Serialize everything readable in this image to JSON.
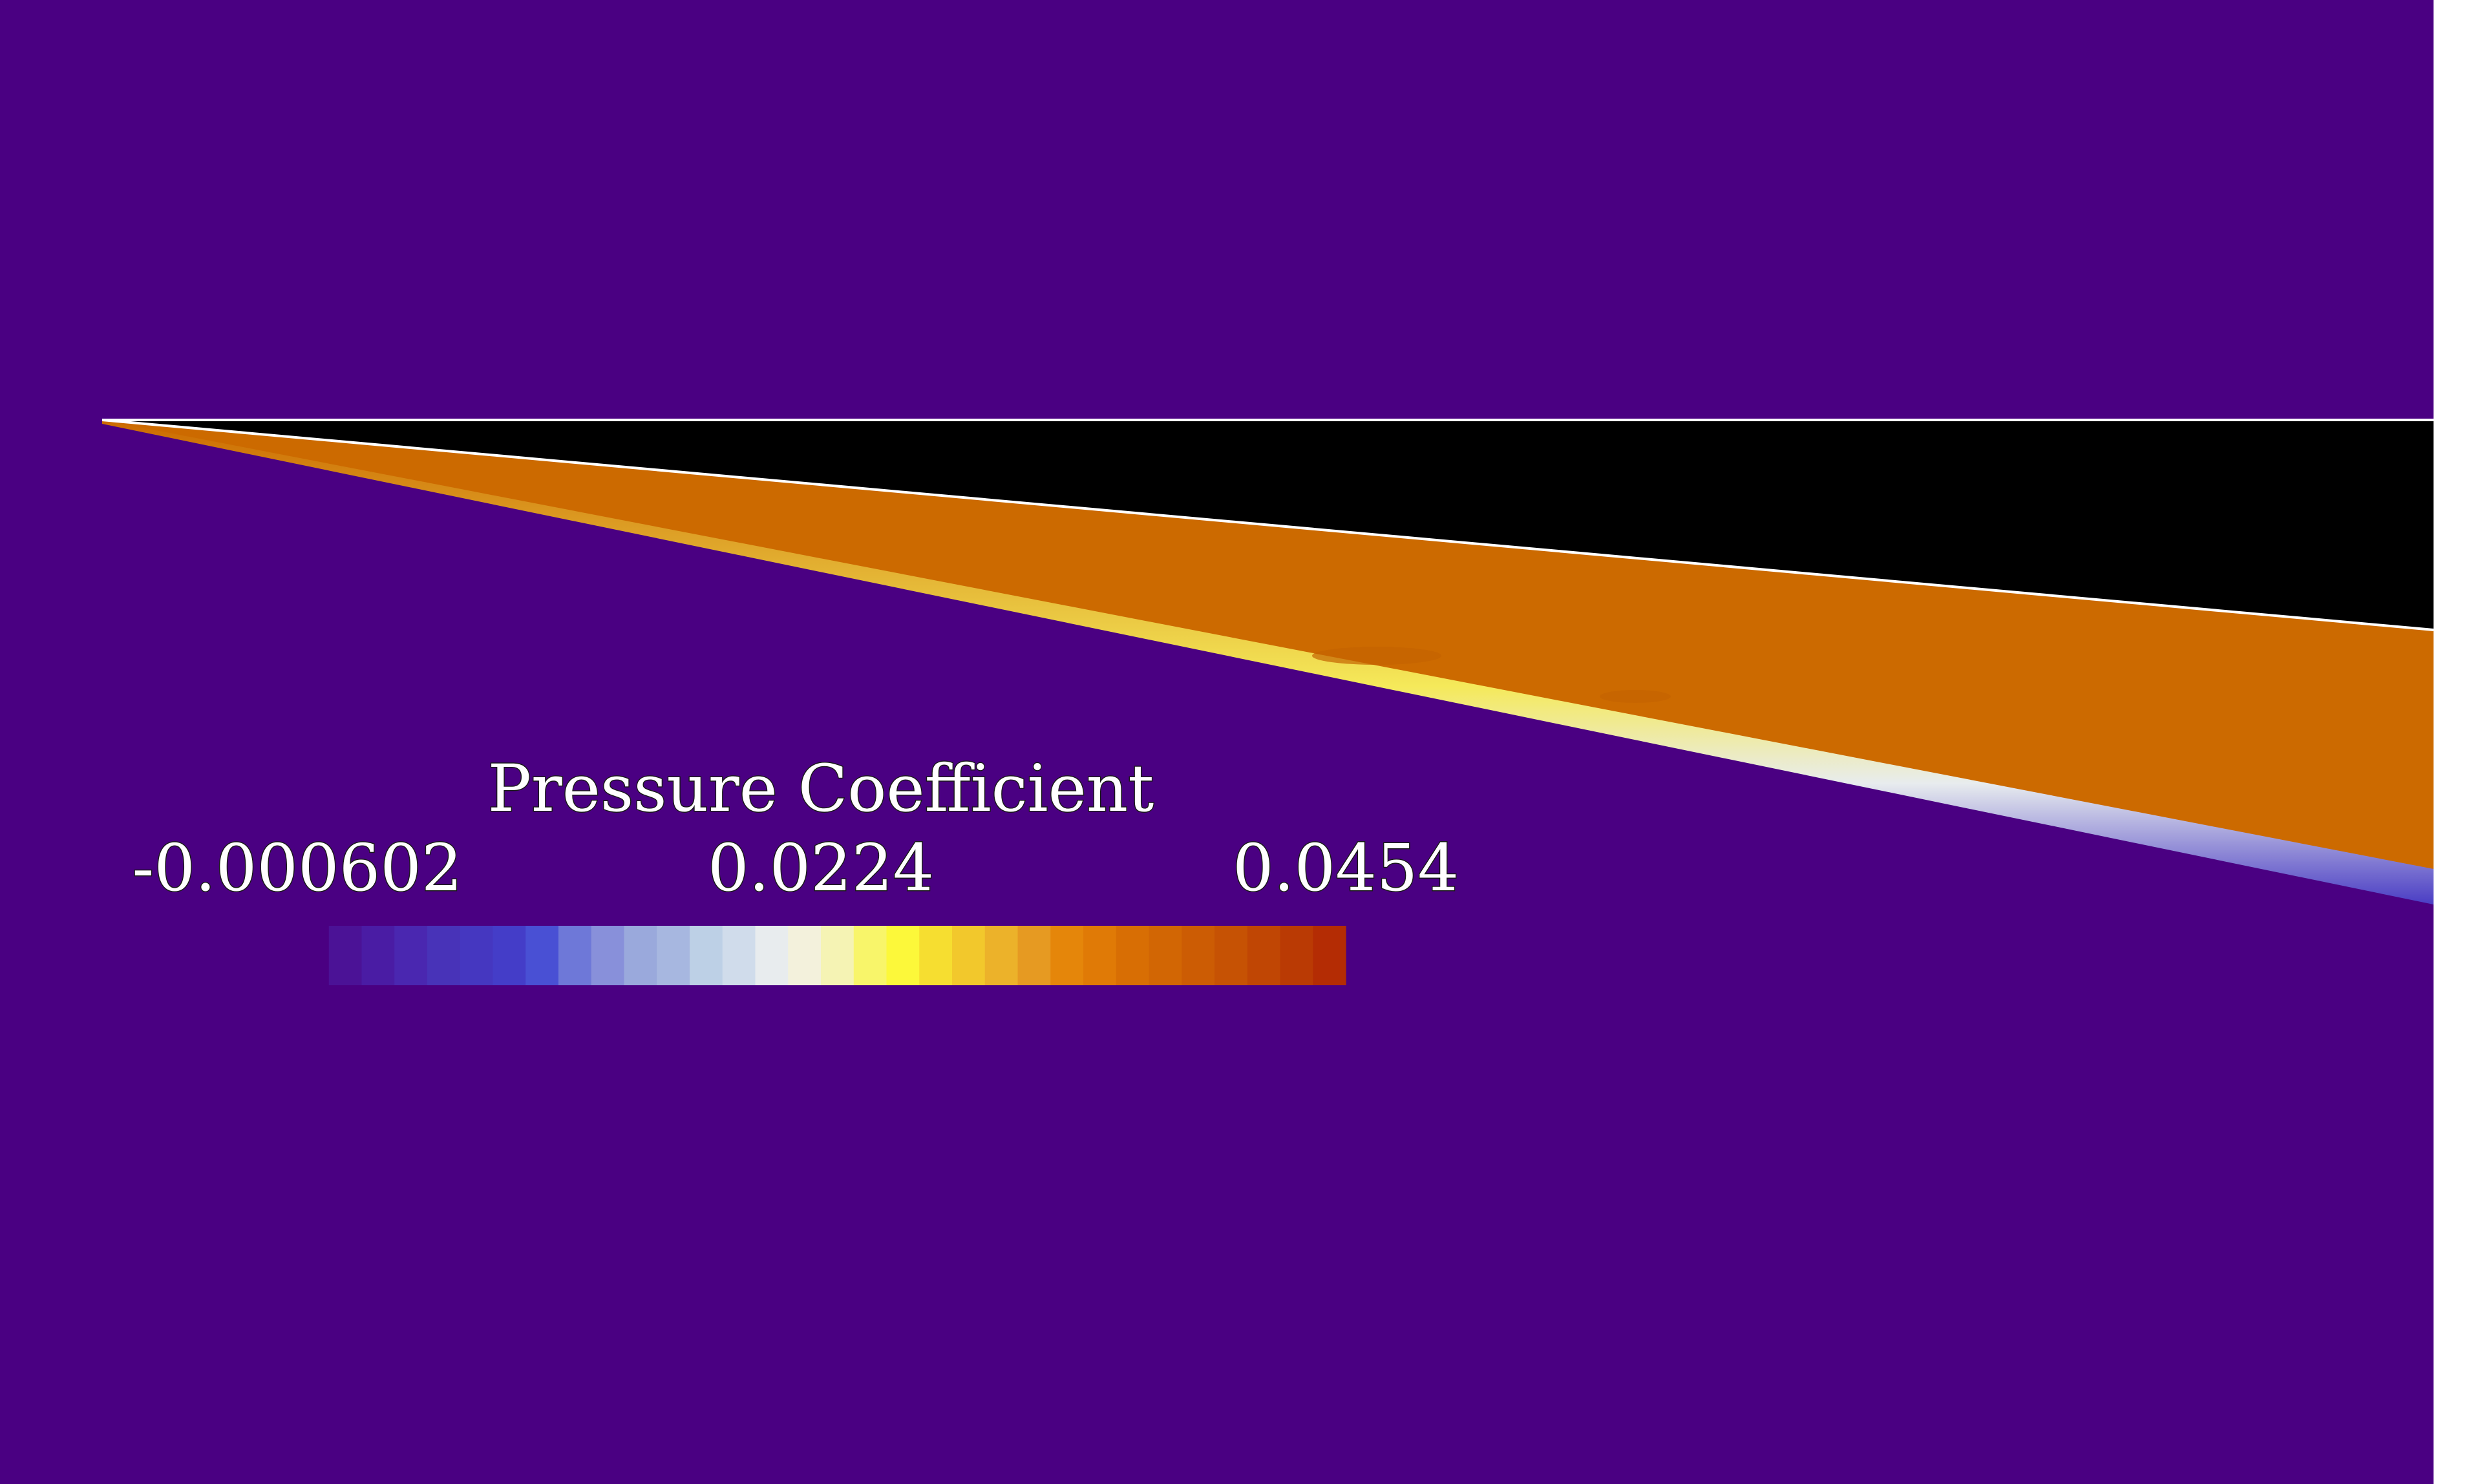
{
  "colors": {
    "background_field": "#4a0082",
    "geometry_fill": "#000000",
    "geometry_edge": "#ffffff",
    "shock_region": "#cc6a00",
    "page": "#ffffff"
  },
  "scene": {
    "description_of_view": "",
    "colorbar": {
      "title": "Pressure Coefficient",
      "tick_labels": [
        "-0.000602",
        "0.0224",
        "0.0454"
      ],
      "min": -0.000602,
      "max": 0.0454,
      "segments": 32,
      "palette": [
        "#4a0082",
        "#4b1296",
        "#4a1ca4",
        "#4a27b0",
        "#4833b8",
        "#4537c0",
        "#443dc8",
        "#4950d4",
        "#6e78d8",
        "#8890da",
        "#9aa9dc",
        "#a7b7e0",
        "#bdd0e6",
        "#d0dceb",
        "#e8ecee",
        "#f3f1dc",
        "#f5f3b4",
        "#f8f56a",
        "#fcf83a",
        "#f6de30",
        "#f2c82c",
        "#ecb22a",
        "#e69a22",
        "#e5860a",
        "#e07a06",
        "#d86e04",
        "#d26604",
        "#cc5c04",
        "#c65204",
        "#c04604",
        "#ba3a04",
        "#b42c04"
      ]
    }
  }
}
